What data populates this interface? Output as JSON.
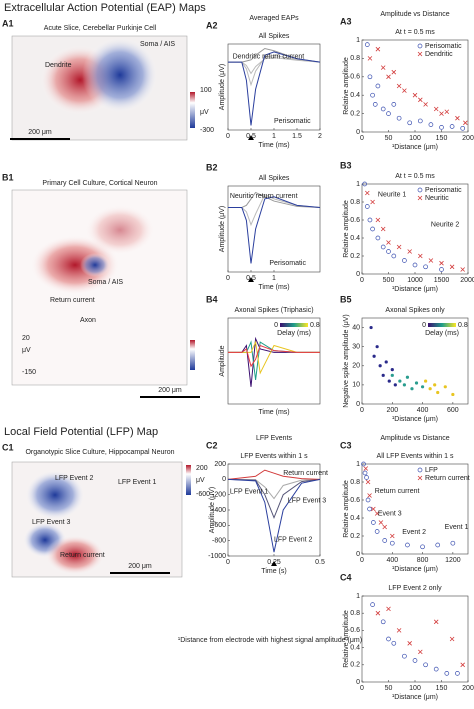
{
  "headers": [
    "Extracellular Action Potential (EAP) Maps",
    "Local Field Potential (LFP) Map"
  ],
  "footnote": "¹Distance from electrode with highest signal amplitude (μm)",
  "image_panels": [
    {
      "label": "A1",
      "title": "Acute Slice, Cerebellar Purkinje Cell",
      "texts": [
        "Dendrite",
        "Soma / AIS"
      ],
      "scale": "200 μm",
      "colorbar": [
        "100",
        "μV",
        "-300"
      ]
    },
    {
      "label": "B1",
      "title": "Primary Cell Culture, Cortical Neuron",
      "texts": [
        "Soma / AIS",
        "Return current",
        "Axon"
      ],
      "scale": "200 μm",
      "colorbar": [
        "20",
        "μV",
        "-150"
      ]
    },
    {
      "label": "C1",
      "title": "Organotypic Slice Culture, Hippocampal Neuron",
      "texts": [
        "LFP Event 2",
        "LFP Event 1",
        "LFP Event 3",
        "Return current"
      ],
      "scale": "200 μm",
      "colorbar": [
        "200",
        "μV",
        "-600"
      ]
    }
  ],
  "chart_data": [
    {
      "type": "line",
      "label": "A2",
      "suptitle": "Averaged EAPs",
      "title": "All Spikes",
      "xlabel": "Time (ms)",
      "ylabel": "Amplitude (μV)",
      "xlim": [
        0,
        2
      ],
      "ylim": [
        -300,
        80
      ],
      "xticks": [
        0,
        0.5,
        1,
        1.5,
        2
      ],
      "annotations": [
        "Dendritic return current",
        "Perisomatic"
      ],
      "series": [
        {
          "color": "#bbbbbb",
          "x": [
            0,
            0.3,
            0.4,
            0.5,
            0.6,
            0.8,
            1,
            1.5,
            2
          ],
          "values": [
            0,
            0,
            -30,
            -100,
            -40,
            20,
            30,
            10,
            0
          ]
        },
        {
          "color": "#bbbbbb",
          "x": [
            0,
            0.3,
            0.4,
            0.5,
            0.6,
            0.8,
            1,
            1.5,
            2
          ],
          "values": [
            0,
            0,
            -15,
            -50,
            -20,
            15,
            20,
            8,
            0
          ]
        },
        {
          "color": "#999999",
          "x": [
            0,
            0.3,
            0.4,
            0.5,
            0.6,
            0.8,
            1,
            1.5,
            2
          ],
          "values": [
            0,
            0,
            5,
            10,
            30,
            60,
            50,
            15,
            0
          ]
        },
        {
          "color": "#2b3f9e",
          "x": [
            0,
            0.3,
            0.4,
            0.5,
            0.6,
            0.8,
            1,
            1.5,
            2
          ],
          "values": [
            0,
            0,
            -80,
            -280,
            -120,
            30,
            45,
            15,
            0
          ]
        }
      ]
    },
    {
      "type": "scatter",
      "label": "A3",
      "suptitle": "Amplitude vs Distance",
      "title": "At t = 0.5 ms",
      "xlabel": "¹Distance (μm)",
      "ylabel": "Relative amplitude",
      "xlim": [
        0,
        200
      ],
      "ylim": [
        0,
        1
      ],
      "xticks": [
        0,
        50,
        100,
        150,
        200
      ],
      "yticks": [
        0,
        0.2,
        0.4,
        0.6,
        0.8,
        1
      ],
      "series": [
        {
          "name": "Perisomatic",
          "color": "#3a4fb0",
          "marker": "o",
          "x": [
            10,
            15,
            20,
            25,
            30,
            40,
            50,
            60,
            70,
            90,
            110,
            130,
            150,
            170,
            190
          ],
          "values": [
            0.95,
            0.6,
            0.4,
            0.3,
            0.5,
            0.25,
            0.2,
            0.3,
            0.15,
            0.1,
            0.12,
            0.08,
            0.05,
            0.06,
            0.04
          ]
        },
        {
          "name": "Dendritic",
          "color": "#d23a3a",
          "marker": "x",
          "x": [
            15,
            30,
            40,
            50,
            60,
            70,
            80,
            100,
            110,
            120,
            140,
            150,
            160,
            180,
            195
          ],
          "values": [
            0.8,
            0.9,
            0.7,
            0.6,
            0.65,
            0.5,
            0.45,
            0.4,
            0.35,
            0.3,
            0.25,
            0.2,
            0.22,
            0.15,
            0.1
          ]
        }
      ]
    },
    {
      "type": "line",
      "label": "B2",
      "title": "All Spikes",
      "xlabel": "Time (ms)",
      "ylabel": "Amplitude (μV)",
      "xlim": [
        0,
        2
      ],
      "ylim": [
        -300,
        100
      ],
      "xticks": [
        0,
        0.5,
        1
      ],
      "annotations": [
        "Neuritic return current",
        "Perisomatic"
      ],
      "series": [
        {
          "color": "#bbbbbb",
          "x": [
            0,
            0.3,
            0.4,
            0.5,
            0.6,
            0.8,
            1,
            1.5,
            2
          ],
          "values": [
            0,
            0,
            -20,
            -80,
            -30,
            60,
            40,
            10,
            0
          ]
        },
        {
          "color": "#999999",
          "x": [
            0,
            0.3,
            0.4,
            0.5,
            0.6,
            0.8,
            1,
            1.5,
            2
          ],
          "values": [
            0,
            0,
            10,
            40,
            70,
            50,
            30,
            5,
            0
          ]
        },
        {
          "color": "#2b3f9e",
          "x": [
            0,
            0.3,
            0.4,
            0.5,
            0.6,
            0.8,
            1,
            1.5,
            2
          ],
          "values": [
            0,
            0,
            -60,
            -260,
            -100,
            40,
            50,
            10,
            0
          ]
        }
      ]
    },
    {
      "type": "scatter",
      "label": "B3",
      "title": "At t = 0.5 ms",
      "xlabel": "¹Distance (μm)",
      "ylabel": "Relative amplitude",
      "xlim": [
        0,
        2000
      ],
      "ylim": [
        0,
        1
      ],
      "xticks": [
        0,
        500,
        1000,
        1500,
        2000
      ],
      "yticks": [
        0,
        0.2,
        0.4,
        0.6,
        0.8,
        1
      ],
      "annotations": [
        "Neurite 1",
        "Neurite 2"
      ],
      "series": [
        {
          "name": "Perisomatic",
          "color": "#3a4fb0",
          "marker": "o",
          "x": [
            50,
            100,
            150,
            200,
            300,
            400,
            500,
            600,
            800,
            1000,
            1200,
            1500
          ],
          "values": [
            1,
            0.75,
            0.6,
            0.5,
            0.4,
            0.3,
            0.25,
            0.2,
            0.15,
            0.1,
            0.08,
            0.05
          ]
        },
        {
          "name": "Neuritic",
          "color": "#d23a3a",
          "marker": "x",
          "x": [
            100,
            200,
            300,
            400,
            500,
            700,
            900,
            1100,
            1300,
            1500,
            1700,
            1900
          ],
          "values": [
            0.9,
            0.8,
            0.6,
            0.5,
            0.35,
            0.3,
            0.25,
            0.2,
            0.15,
            0.12,
            0.08,
            0.05
          ]
        }
      ]
    },
    {
      "type": "line",
      "label": "B4",
      "title": "Axonal Spikes (Triphasic)",
      "xlabel": "Time (ms)",
      "ylabel": "Amplitude",
      "xlim": [
        0,
        2
      ],
      "ylim": [
        -150,
        100
      ],
      "colorbar": {
        "label": "Delay (ms)",
        "ticks": [
          0,
          0.8
        ]
      },
      "series": [
        {
          "color": "#3b0f70",
          "x": [
            0,
            0.3,
            0.4,
            0.5,
            0.6,
            0.7,
            1,
            1.5,
            2
          ],
          "values": [
            0,
            0,
            20,
            -100,
            40,
            10,
            0,
            0,
            0
          ]
        },
        {
          "color": "#1f9e89",
          "x": [
            0,
            0.3,
            0.4,
            0.5,
            0.6,
            0.7,
            1,
            1.5,
            2
          ],
          "values": [
            0,
            0,
            0,
            30,
            -80,
            30,
            5,
            0,
            0
          ]
        },
        {
          "color": "#e8c521",
          "x": [
            0,
            0.3,
            0.4,
            0.5,
            0.6,
            0.7,
            1,
            1.5,
            2
          ],
          "values": [
            0,
            0,
            0,
            0,
            30,
            -60,
            20,
            0,
            0
          ]
        },
        {
          "color": "#e63946",
          "x": [
            0,
            0.3,
            0.4,
            0.5,
            0.6,
            0.7,
            1,
            1.5,
            2
          ],
          "values": [
            0,
            0,
            10,
            -40,
            -20,
            20,
            5,
            0,
            0
          ]
        }
      ]
    },
    {
      "type": "scatter",
      "label": "B5",
      "title": "Axonal Spikes only",
      "xlabel": "¹Distance (μm)",
      "ylabel": "Negative spike amplitude (μV)",
      "xlim": [
        0,
        700
      ],
      "ylim": [
        0,
        45
      ],
      "xticks": [
        0,
        200,
        400,
        600
      ],
      "yticks": [
        0,
        10,
        20,
        30,
        40
      ],
      "colorbar": {
        "label": "Delay (ms)",
        "ticks": [
          0,
          0.8
        ]
      },
      "series": [
        {
          "color": "#2a2a8a",
          "marker": "dot",
          "x": [
            60,
            80,
            100,
            120,
            140,
            160,
            180,
            200,
            220
          ],
          "values": [
            40,
            25,
            30,
            20,
            15,
            22,
            12,
            18,
            10
          ]
        },
        {
          "color": "#2a9d8f",
          "marker": "dot",
          "x": [
            200,
            250,
            280,
            300,
            330,
            360,
            400
          ],
          "values": [
            15,
            12,
            10,
            14,
            8,
            11,
            9
          ]
        },
        {
          "color": "#e8c521",
          "marker": "dot",
          "x": [
            420,
            450,
            480,
            500,
            550,
            600
          ],
          "values": [
            12,
            8,
            10,
            6,
            9,
            5
          ]
        }
      ]
    },
    {
      "type": "line",
      "label": "C2",
      "suptitle": "LFP Events",
      "title": "LFP Events within 1 s",
      "xlabel": "Time (s)",
      "ylabel": "Amplitude (μV)",
      "xlim": [
        0,
        0.5
      ],
      "ylim": [
        -1000,
        200
      ],
      "xticks": [
        0,
        0.25,
        0.5
      ],
      "yticks": [
        -1000,
        -800,
        -600,
        -400,
        -200,
        0,
        200
      ],
      "annotations": [
        "Return current",
        "LFP Event 1",
        "LFP Event 3",
        "LFP Event 2"
      ],
      "series": [
        {
          "color": "#aaaaaa",
          "x": [
            0,
            0.15,
            0.2,
            0.25,
            0.3,
            0.4,
            0.5
          ],
          "values": [
            0,
            -5,
            -100,
            -250,
            -80,
            -10,
            0
          ]
        },
        {
          "color": "#555577",
          "x": [
            0,
            0.15,
            0.2,
            0.25,
            0.3,
            0.4,
            0.5
          ],
          "values": [
            0,
            -10,
            -200,
            -500,
            -200,
            -30,
            0
          ]
        },
        {
          "color": "#d23a3a",
          "x": [
            0,
            0.15,
            0.2,
            0.25,
            0.3,
            0.4,
            0.5
          ],
          "values": [
            0,
            40,
            120,
            80,
            40,
            10,
            0
          ]
        },
        {
          "color": "#2b3f9e",
          "x": [
            0,
            0.15,
            0.2,
            0.25,
            0.3,
            0.4,
            0.5
          ],
          "values": [
            0,
            -20,
            -300,
            -950,
            -400,
            -50,
            0
          ]
        }
      ]
    },
    {
      "type": "scatter",
      "label": "C3",
      "suptitle": "Amplitude vs Distance",
      "title": "All LFP Events within 1 s",
      "xlabel": "¹Distance (μm)",
      "ylabel": "Relative amplitude",
      "xlim": [
        0,
        1400
      ],
      "ylim": [
        0,
        1
      ],
      "xticks": [
        0,
        400,
        800,
        1200
      ],
      "yticks": [
        0,
        0.2,
        0.4,
        0.6,
        0.8,
        1
      ],
      "annotations": [
        "Return current",
        "Event 3",
        "Event 2",
        "Event 1"
      ],
      "series": [
        {
          "name": "LFP",
          "color": "#3a4fb0",
          "marker": "o",
          "x": [
            20,
            40,
            60,
            80,
            100,
            150,
            200,
            300,
            400,
            600,
            800,
            1000,
            1200
          ],
          "values": [
            1,
            0.9,
            0.85,
            0.6,
            0.5,
            0.35,
            0.25,
            0.15,
            0.12,
            0.1,
            0.08,
            0.1,
            0.12
          ]
        },
        {
          "name": "Return current",
          "color": "#d23a3a",
          "marker": "x",
          "x": [
            50,
            80,
            100,
            150,
            200,
            250,
            300,
            400
          ],
          "values": [
            0.95,
            0.8,
            0.65,
            0.5,
            0.45,
            0.35,
            0.3,
            0.2
          ]
        }
      ]
    },
    {
      "type": "scatter",
      "label": "C4",
      "title": "LFP Event 2 only",
      "xlabel": "¹Distance (μm)",
      "ylabel": "Relative amplitude",
      "xlim": [
        0,
        200
      ],
      "ylim": [
        0,
        1
      ],
      "xticks": [
        0,
        50,
        100,
        150,
        200
      ],
      "yticks": [
        0,
        0.2,
        0.4,
        0.6,
        0.8,
        1
      ],
      "series": [
        {
          "color": "#3a4fb0",
          "marker": "o",
          "x": [
            20,
            40,
            50,
            60,
            80,
            100,
            120,
            140,
            160,
            180
          ],
          "values": [
            0.9,
            0.7,
            0.5,
            0.45,
            0.3,
            0.25,
            0.2,
            0.15,
            0.1,
            0.1
          ]
        },
        {
          "color": "#d23a3a",
          "marker": "x",
          "x": [
            30,
            50,
            70,
            90,
            110,
            140,
            170,
            190
          ],
          "values": [
            0.8,
            0.85,
            0.6,
            0.45,
            0.35,
            0.7,
            0.5,
            0.2
          ]
        }
      ]
    }
  ]
}
